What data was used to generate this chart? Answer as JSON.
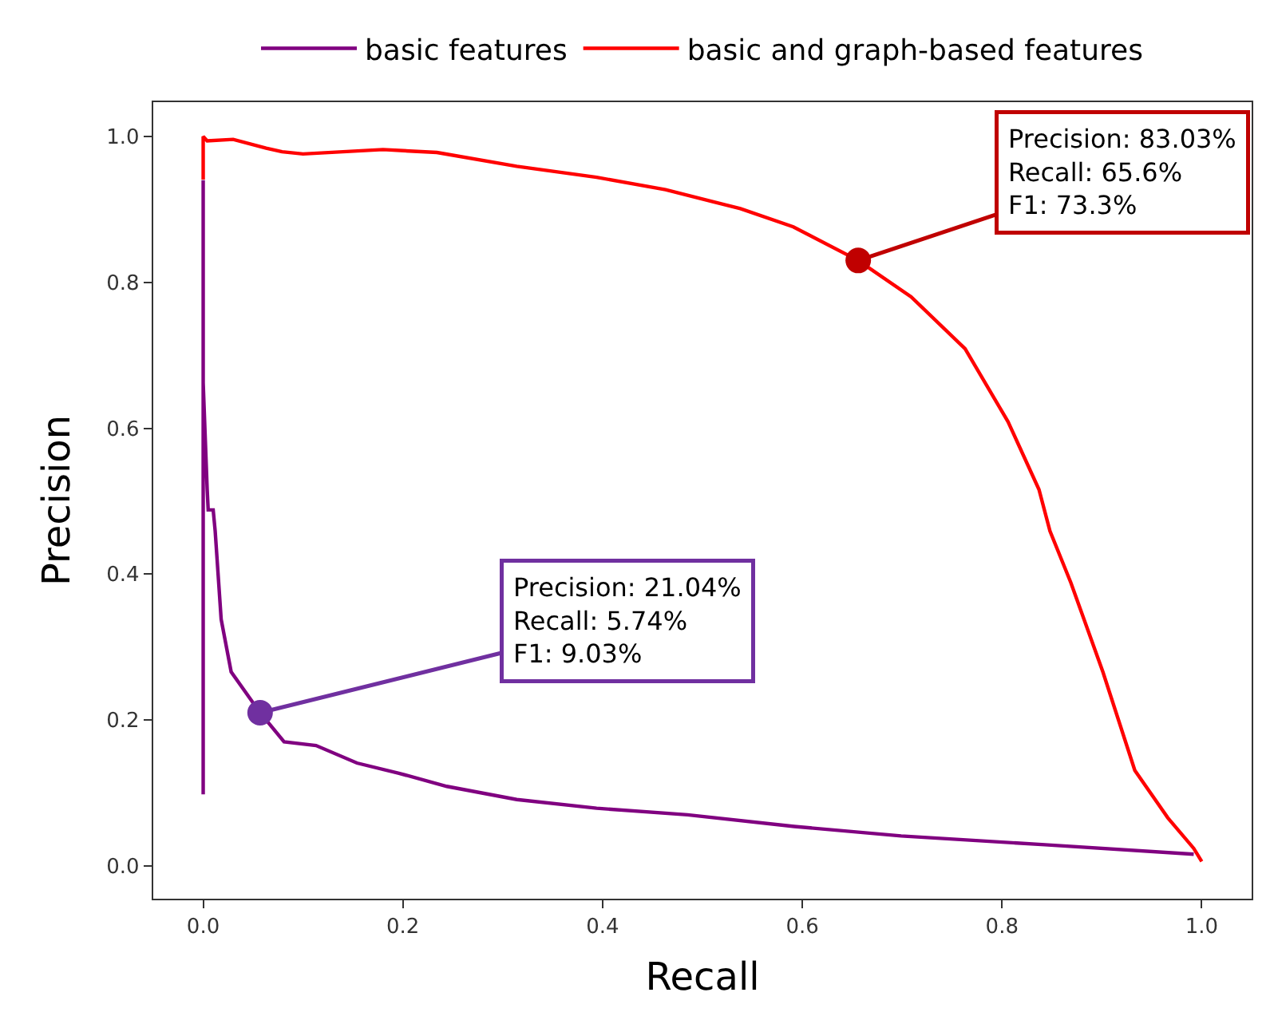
{
  "chart_data": {
    "type": "line",
    "xlabel": "Recall",
    "ylabel": "Precision",
    "xlim": [
      -0.05,
      1.05
    ],
    "ylim": [
      -0.045,
      1.047
    ],
    "xticks": [
      {
        "value": 0,
        "label": "0.0"
      },
      0.2,
      0.4,
      0.6,
      0.8,
      {
        "value": 1,
        "label": "1.0"
      }
    ],
    "yticks": [
      {
        "value": 0,
        "label": "0.0"
      },
      0.2,
      0.4,
      0.6,
      0.8,
      {
        "value": 1,
        "label": "1.0"
      }
    ],
    "legend": "top",
    "marker": "none",
    "line_style": "solid",
    "series": [
      {
        "name": "basic features",
        "color": "#800080",
        "x": [
          0,
          0,
          0,
          0.004,
          0.005,
          0.01,
          0.012,
          0.018,
          0.028,
          0.057,
          0.081,
          0.113,
          0.154,
          0.196,
          0.244,
          0.314,
          0.394,
          0.485,
          0.592,
          0.699,
          0.843,
          0.992
        ],
        "values": [
          0.098,
          0.94,
          0.662,
          0.516,
          0.488,
          0.488,
          0.459,
          0.338,
          0.266,
          0.21,
          0.17,
          0.165,
          0.141,
          0.127,
          0.109,
          0.091,
          0.079,
          0.07,
          0.054,
          0.041,
          0.029,
          0.016
        ]
      },
      {
        "name": "basic and graph-based features",
        "color": "#ff0000",
        "x": [
          0,
          0,
          0.004,
          0.03,
          0.063,
          0.079,
          0.1,
          0.18,
          0.234,
          0.314,
          0.394,
          0.463,
          0.538,
          0.591,
          0.656,
          0.709,
          0.763,
          0.806,
          0.837,
          0.848,
          0.869,
          0.901,
          0.933,
          0.966,
          0.992,
          1.0
        ],
        "values": [
          0.941,
          1.0,
          0.994,
          0.996,
          0.984,
          0.979,
          0.976,
          0.982,
          0.978,
          0.959,
          0.944,
          0.927,
          0.901,
          0.876,
          0.83,
          0.78,
          0.709,
          0.609,
          0.516,
          0.459,
          0.388,
          0.266,
          0.131,
          0.066,
          0.024,
          0.006
        ]
      }
    ],
    "annotations": [
      {
        "text": "Precision: 21.04%\nRecall: 5.74%\nF1: 9.03%",
        "x": 0.057,
        "y": 0.21
      },
      {
        "text": "Precision: 83.03%\nRecall: 65.6%\nF1: 73.3%",
        "x": 0.656,
        "y": 0.83
      }
    ]
  }
}
